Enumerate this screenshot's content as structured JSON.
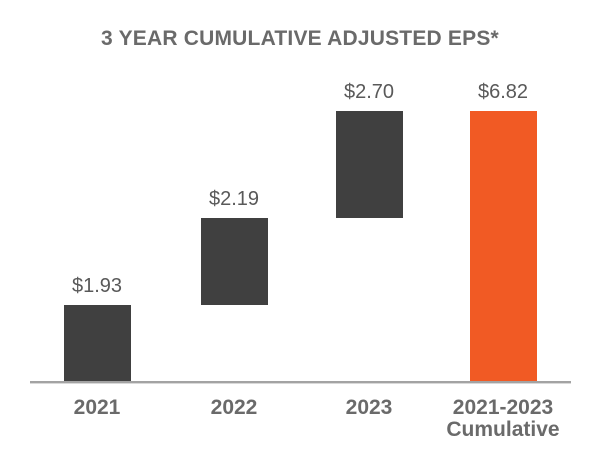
{
  "chart_data": {
    "type": "bar",
    "subtype": "waterfall",
    "title": "3 YEAR CUMULATIVE ADJUSTED EPS*",
    "xlabel": "",
    "ylabel": "",
    "ylim": [
      0,
      7.3
    ],
    "grid": false,
    "legend": false,
    "axis_line_color": "#A3A3A3",
    "value_label_color": "#595959",
    "tick_label_color": "#6A6A6A",
    "title_color": "#6A6A6A",
    "colors": {
      "increment": "#404040",
      "total": "#F15A24"
    },
    "categories": [
      "2021",
      "2022",
      "2023",
      "2021-2023 Cumulative"
    ],
    "values": [
      1.93,
      2.19,
      2.7,
      6.82
    ],
    "bars": [
      {
        "category": "2021",
        "category_lines": [
          "2021"
        ],
        "value": 1.93,
        "label": "$1.93",
        "start": 0,
        "end": 1.93,
        "role": "increment",
        "color": "#404040"
      },
      {
        "category": "2022",
        "category_lines": [
          "2022"
        ],
        "value": 2.19,
        "label": "$2.19",
        "start": 1.93,
        "end": 4.12,
        "role": "increment",
        "color": "#404040"
      },
      {
        "category": "2023",
        "category_lines": [
          "2023"
        ],
        "value": 2.7,
        "label": "$2.70",
        "start": 4.12,
        "end": 6.82,
        "role": "increment",
        "color": "#404040"
      },
      {
        "category": "2021-2023 Cumulative",
        "category_lines": [
          "2021-2023",
          "Cumulative"
        ],
        "value": 6.82,
        "label": "$6.82",
        "start": 0,
        "end": 6.82,
        "role": "total",
        "color": "#F15A24"
      }
    ]
  }
}
